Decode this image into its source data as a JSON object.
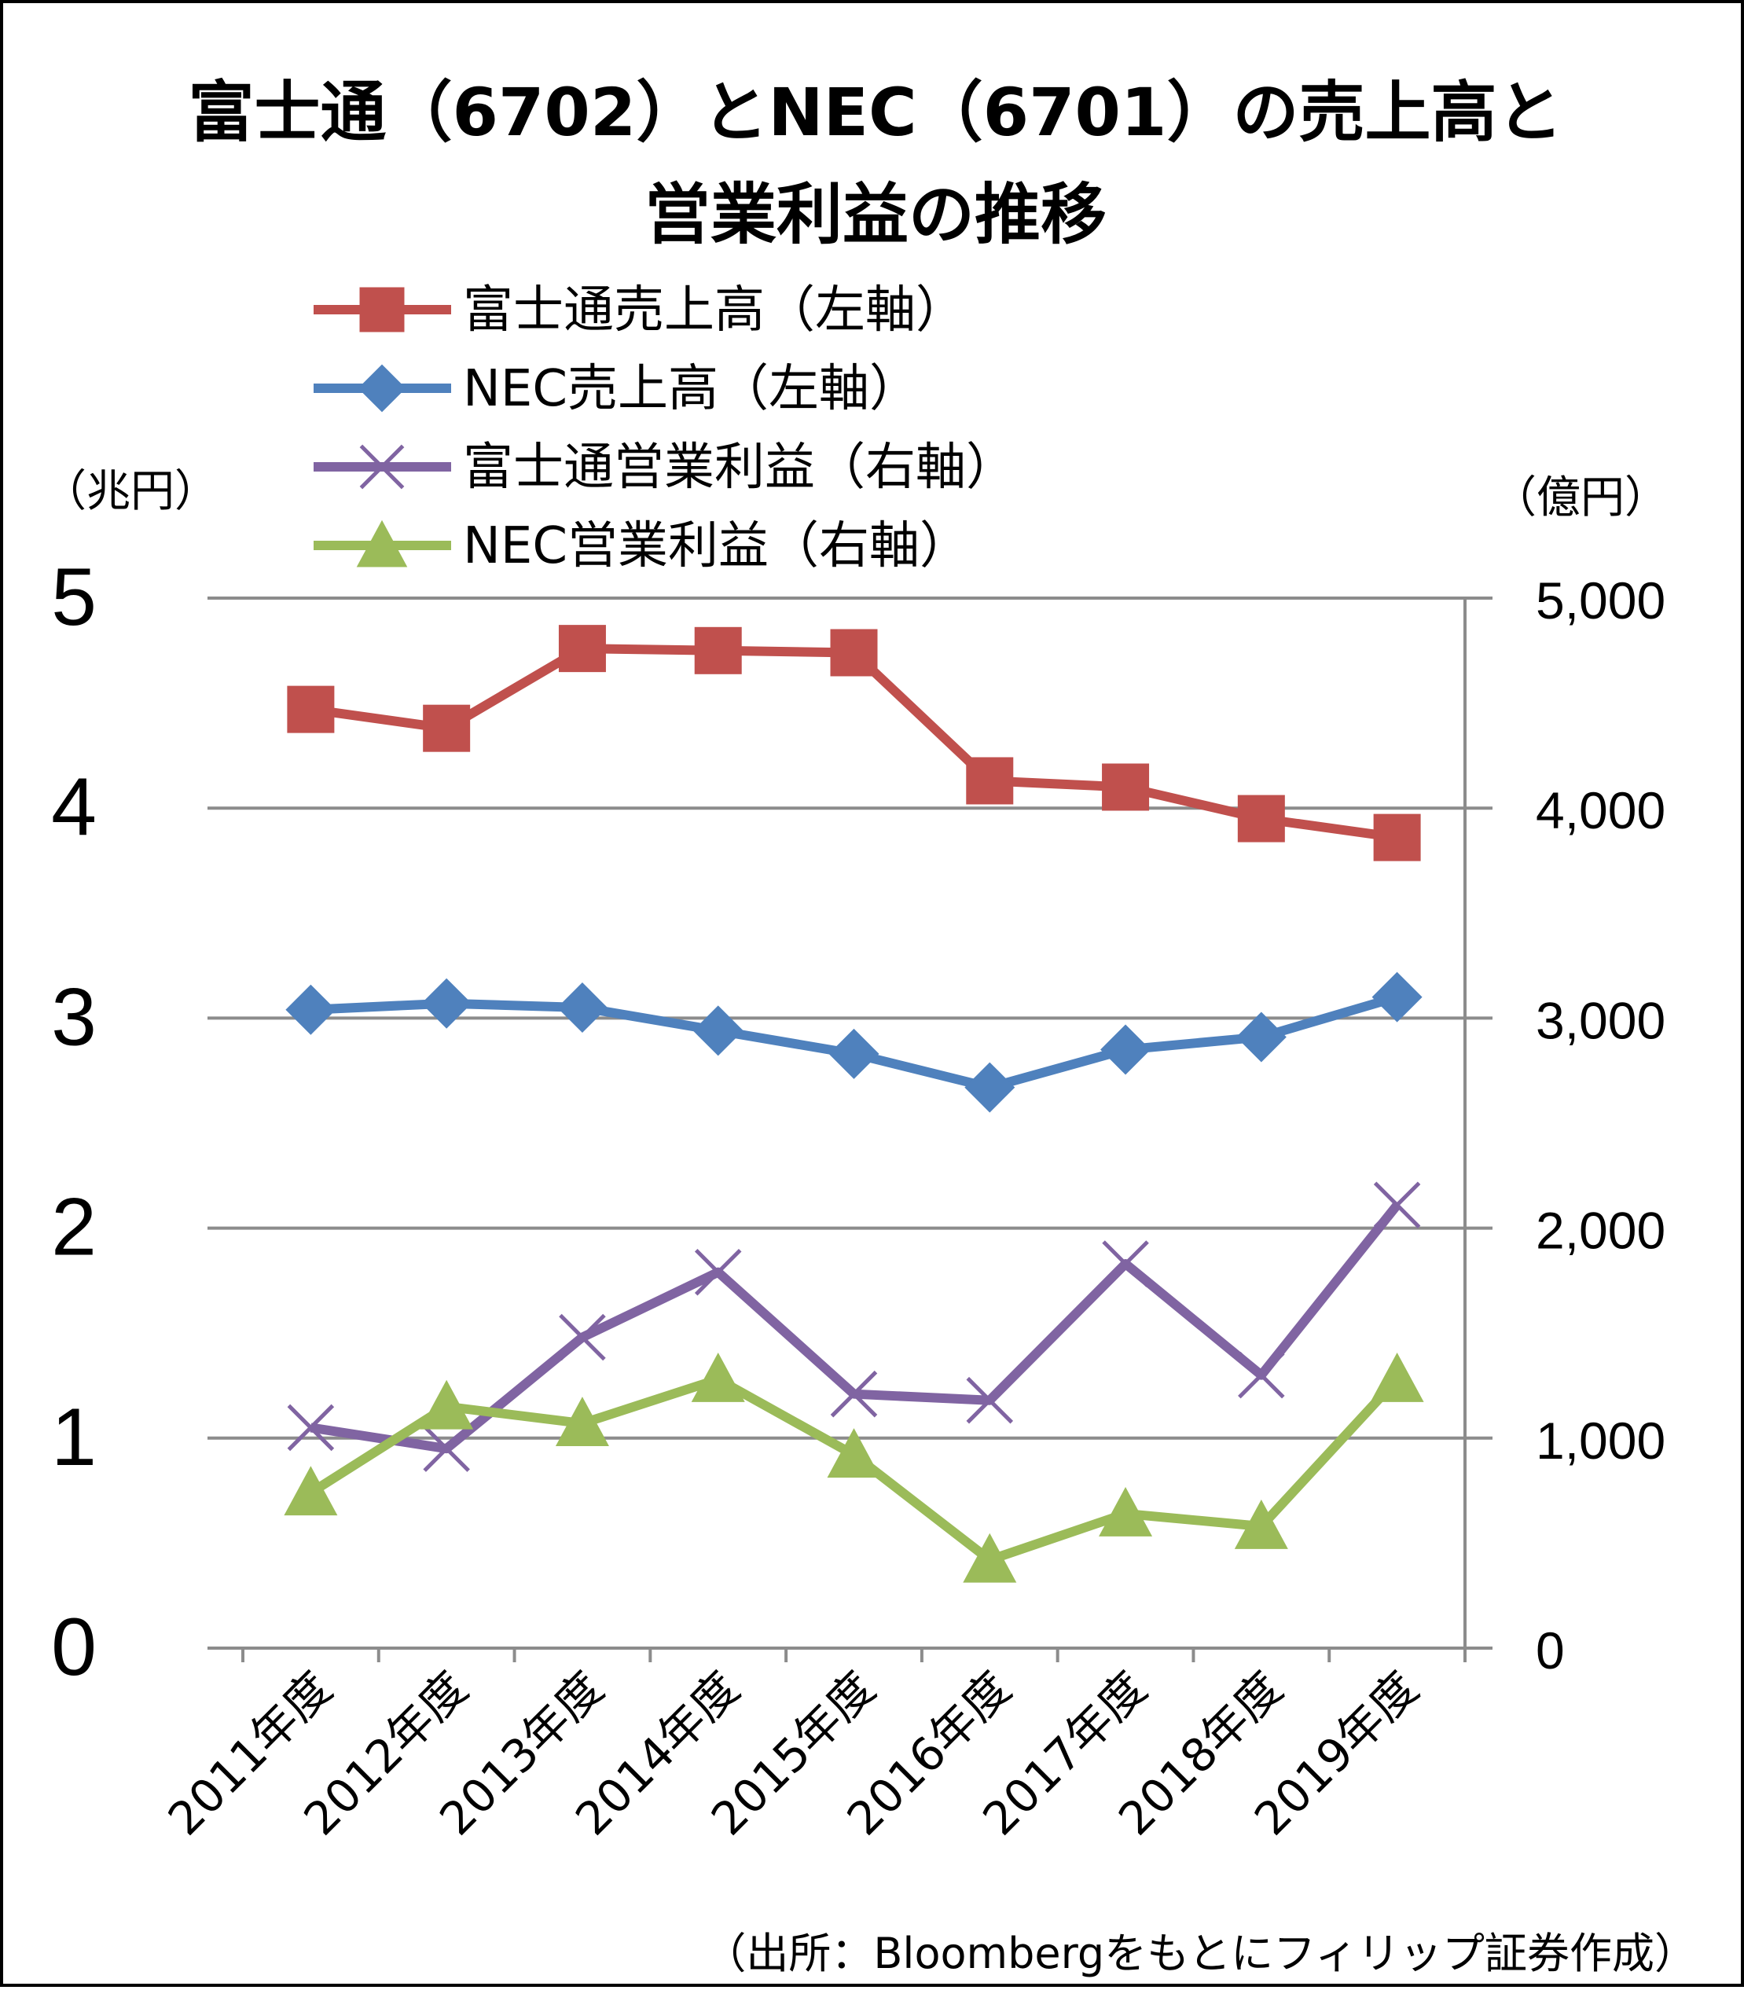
{
  "chart_data": {
    "type": "line",
    "title_lines": [
      "富士通（6702）とNEC（6701）の売上高と",
      "営業利益の推移"
    ],
    "left_axis": {
      "unit": "（兆円）",
      "ylim": [
        0,
        5
      ],
      "ticks": [
        "0",
        "1",
        "2",
        "3",
        "4",
        "5"
      ]
    },
    "right_axis": {
      "unit": "（億円）",
      "ylim": [
        0,
        5000
      ],
      "ticks": [
        "0",
        "1,000",
        "2,000",
        "3,000",
        "4,000",
        "5,000"
      ]
    },
    "categories": [
      "2011年度",
      "2012年度",
      "2013年度",
      "2014年度",
      "2015年度",
      "2016年度",
      "2017年度",
      "2018年度",
      "2019年度"
    ],
    "series": [
      {
        "name": "富士通売上高（左軸）",
        "axis": "left",
        "color": "#c0504d",
        "marker": "square",
        "values": [
          4.47,
          4.38,
          4.76,
          4.75,
          4.74,
          4.13,
          4.1,
          3.95,
          3.86
        ]
      },
      {
        "name": "NEC売上高（左軸）",
        "axis": "left",
        "color": "#4f81bd",
        "marker": "diamond",
        "values": [
          3.04,
          3.07,
          3.05,
          2.94,
          2.83,
          2.67,
          2.85,
          2.91,
          3.1
        ]
      },
      {
        "name": "富士通営業利益（右軸）",
        "axis": "right",
        "color": "#8064a2",
        "marker": "x",
        "values": [
          1050,
          950,
          1480,
          1790,
          1210,
          1180,
          1830,
          1300,
          2110
        ]
      },
      {
        "name": "NEC営業利益（右軸）",
        "axis": "right",
        "color": "#9bbb59",
        "marker": "triangle",
        "values": [
          740,
          1150,
          1070,
          1280,
          920,
          420,
          640,
          580,
          1280
        ]
      }
    ],
    "grid": true,
    "legend_position": "top"
  },
  "source": "（出所：Bloombergをもとにフィリップ証券作成）"
}
